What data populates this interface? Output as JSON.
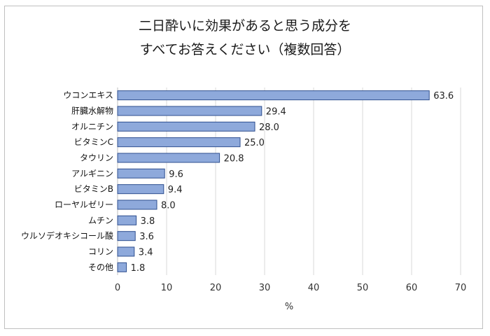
{
  "chart_data": {
    "type": "bar",
    "orientation": "horizontal",
    "title": [
      "二日酔いに効果があると思う成分を",
      "すべてお答えください（複数回答）"
    ],
    "categories": [
      "ウコンエキス",
      "肝臓水解物",
      "オルニチン",
      "ビタミンC",
      "タウリン",
      "アルギニン",
      "ビタミンB",
      "ローヤルゼリー",
      "ムチン",
      "ウルソデオキシコール酸",
      "コリン",
      "その他"
    ],
    "values": [
      63.6,
      29.4,
      28.0,
      25.0,
      20.8,
      9.6,
      9.4,
      8.0,
      3.8,
      3.6,
      3.4,
      1.8
    ],
    "data_labels": [
      "63.6",
      "29.4",
      "28.0",
      "25.0",
      "20.8",
      "9.6",
      "9.4",
      "8.0",
      "3.8",
      "3.6",
      "3.4",
      "1.8"
    ],
    "xlabel": "%",
    "ylabel": "",
    "xlim": [
      0,
      70
    ],
    "xticks": [
      0,
      10,
      20,
      30,
      40,
      50,
      60,
      70
    ],
    "grid": true,
    "legend": "none",
    "colors": {
      "bar_fill": "#8EA9DB",
      "bar_stroke": "#2F4F8F",
      "grid": "#d9d9d9"
    }
  }
}
